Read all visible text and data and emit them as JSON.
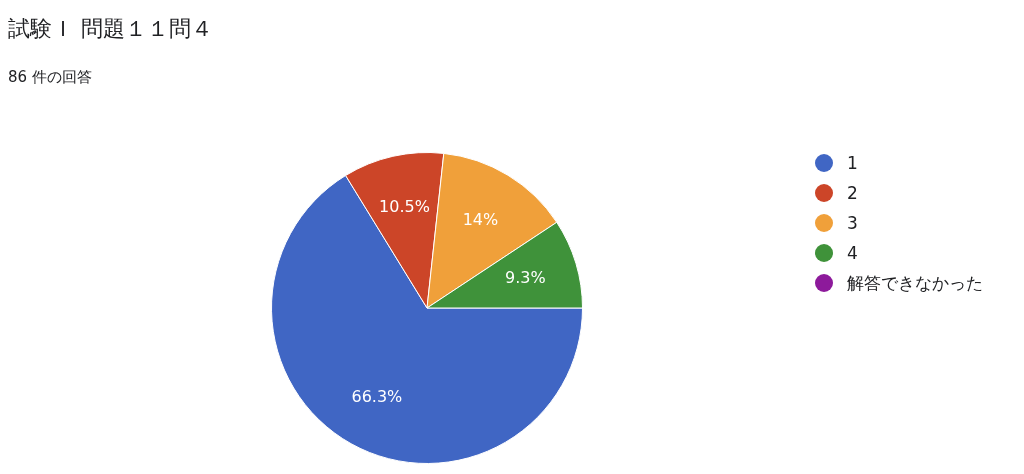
{
  "chart_data": {
    "type": "pie",
    "title": "試験Ｉ 問題１１問４",
    "subtitle": "86 件の回答",
    "categories": [
      "1",
      "2",
      "3",
      "4",
      "解答できなかった"
    ],
    "values": [
      66.3,
      10.5,
      14,
      9.3,
      0
    ],
    "colors": [
      "#4066c4",
      "#cc4528",
      "#f0a03a",
      "#3f923a",
      "#8d1a9b"
    ],
    "value_labels": [
      "66.3%",
      "10.5%",
      "14%",
      "9.3%",
      null
    ],
    "legend": "right"
  }
}
